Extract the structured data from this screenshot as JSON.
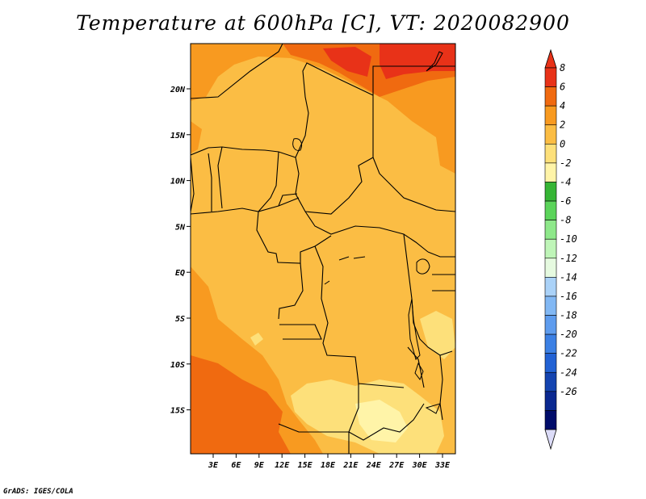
{
  "title": "Temperature at 600hPa [C], VT: 2020082900",
  "credit": "GrADS: IGES/COLA",
  "map": {
    "x_ticks": [
      "3E",
      "6E",
      "9E",
      "12E",
      "15E",
      "18E",
      "21E",
      "24E",
      "27E",
      "30E",
      "33E"
    ],
    "y_ticks": [
      "20N",
      "15N",
      "10N",
      "5N",
      "EQ",
      "5S",
      "10S",
      "15S"
    ]
  },
  "colorbar": {
    "labels": [
      "8",
      "6",
      "4",
      "2",
      "0",
      "-2",
      "-4",
      "-6",
      "-8",
      "-10",
      "-12",
      "-14",
      "-16",
      "-18",
      "-20",
      "-22",
      "-24",
      "-26"
    ],
    "colors": [
      "#e83218",
      "#f06a10",
      "#f89a20",
      "#fbbd44",
      "#fde07a",
      "#fff4a8",
      "#36b535",
      "#5bd45a",
      "#8ee88a",
      "#bff5b8",
      "#e6fae0",
      "#aad2f8",
      "#82b8f4",
      "#5e9cee",
      "#3c80e4",
      "#2262d4",
      "#1444b0",
      "#0a2890",
      "#000c6a"
    ],
    "extend_low_color": "#dcdcf8"
  }
}
